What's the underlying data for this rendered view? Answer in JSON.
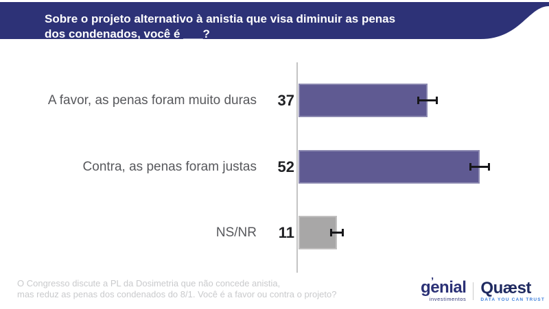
{
  "header": {
    "title_line1": "Sobre o projeto alternativo à anistia que visa diminuir as penas",
    "title_line2": "dos condenados, você é ___?",
    "background_color": "#2d3277",
    "text_color": "#ffffff"
  },
  "chart_data": {
    "type": "bar",
    "orientation": "horizontal",
    "categories": [
      "A favor, as penas foram muito duras",
      "Contra, as penas foram justas",
      "NS/NR"
    ],
    "values": [
      37,
      52,
      11
    ],
    "error_margins": [
      3,
      3,
      2
    ],
    "bar_colors": [
      "#5f5a92",
      "#5f5a92",
      "#a8a7a7"
    ],
    "value_color": "#202124",
    "label_color": "#57585c",
    "axis_color": "#c4c4c4",
    "whisker_color": "#17171a",
    "xlim": [
      0,
      70
    ],
    "grid": false,
    "legend": false
  },
  "footer": {
    "note_line1": "O Congresso discute a PL da Dosimetria que não concede anistia,",
    "note_line2": "mas reduz as penas dos condenados do 8/1. Você é a favor ou contra o projeto?"
  },
  "logos": {
    "genial": {
      "name": "genial",
      "mark": "’",
      "sub": "investimentos"
    },
    "quaest": {
      "name": "Quæst",
      "tagline": "DATA YOU CAN TRUST"
    }
  }
}
